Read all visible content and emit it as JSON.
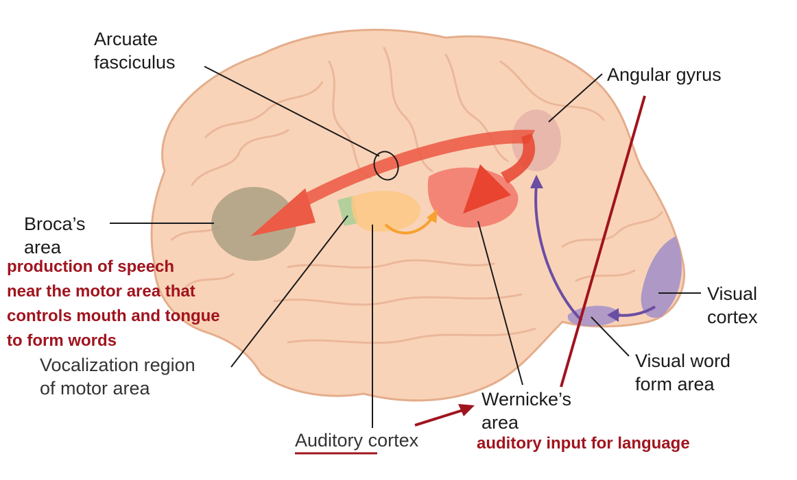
{
  "labels": {
    "arcuate": [
      "Arcuate",
      "fasciculus"
    ],
    "angular": [
      "Angular gyrus"
    ],
    "broca": [
      "Broca’s",
      "area"
    ],
    "visual_cortex": [
      "Visual",
      "cortex"
    ],
    "vocalization": [
      "Vocalization region",
      "of motor area"
    ],
    "visual_word": [
      "Visual word",
      "form area"
    ],
    "wernicke": [
      "Wernicke’s",
      "area"
    ],
    "auditory_underlined": "Auditory",
    "auditory_rest": " cortex"
  },
  "annotations": {
    "broca_note": [
      "production of speech",
      "near the motor area that",
      "controls mouth and tongue",
      "to form words"
    ],
    "wernicke_note": "auditory input for language"
  },
  "colors": {
    "brain": "#f9d3b8",
    "brain_outline": "#e4ad8b",
    "broca": "#a89f82",
    "arrow_red": "#ec5b45",
    "auditory": "#fbc884",
    "wernicke": "#f2776a",
    "angular": "#e3b1a9",
    "visual": "#a491c8",
    "annotation_red": "#a0141e",
    "vocal_green": "#b3cf9c"
  }
}
